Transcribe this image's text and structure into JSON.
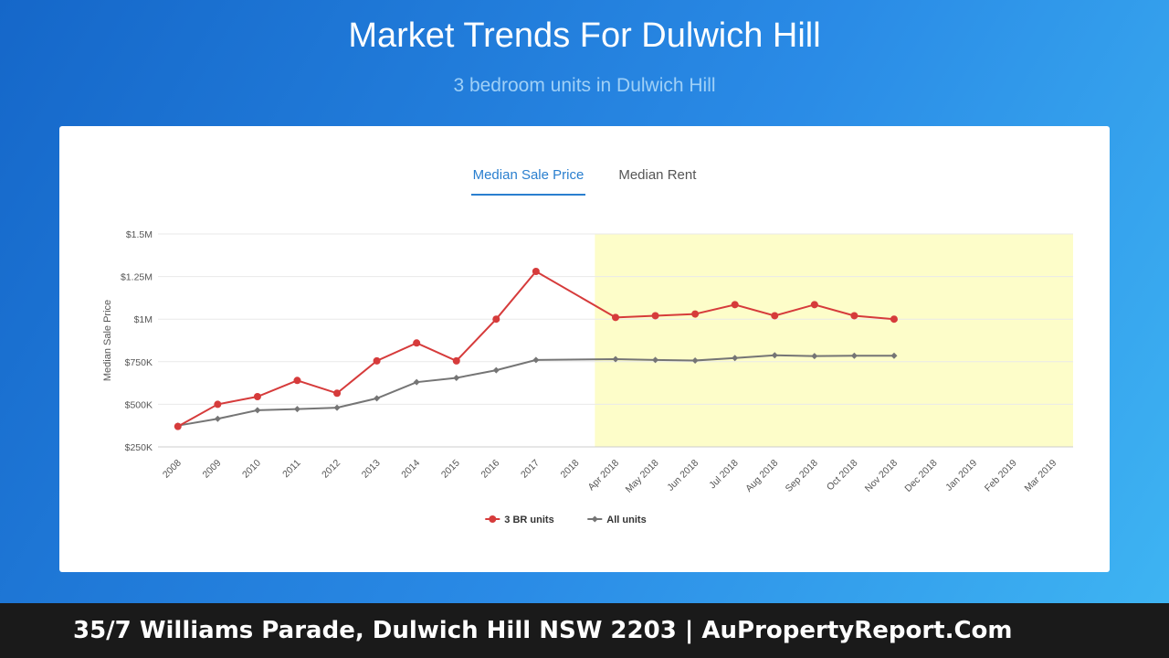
{
  "page": {
    "title": "Market Trends For Dulwich Hill",
    "subtitle": "3 bedroom units in Dulwich Hill"
  },
  "tabs": [
    {
      "label": "Median Sale Price",
      "active": true
    },
    {
      "label": "Median Rent",
      "active": false
    }
  ],
  "footer": {
    "text": "35/7 Williams Parade, Dulwich Hill NSW 2203 | AuPropertyReport.Com"
  },
  "colors": {
    "series_3br": "#d63b3b",
    "series_all": "#757575",
    "highlight_band": "#fdfdc9",
    "active_tab": "#2a7fcf"
  },
  "chart_data": {
    "type": "line",
    "ylabel": "Median Sale Price",
    "xlabel": "",
    "ylim": [
      250000,
      1500000
    ],
    "y_ticks": [
      250000,
      500000,
      750000,
      1000000,
      1250000,
      1500000
    ],
    "y_tick_labels": [
      "$250K",
      "$500K",
      "$750K",
      "$1M",
      "$1.25M",
      "$1.5M"
    ],
    "categories": [
      "2008",
      "2009",
      "2010",
      "2011",
      "2012",
      "2013",
      "2014",
      "2015",
      "2016",
      "2017",
      "2018",
      "Apr 2018",
      "May 2018",
      "Jun 2018",
      "Jul 2018",
      "Aug 2018",
      "Sep 2018",
      "Oct 2018",
      "Nov 2018",
      "Dec 2018",
      "Jan 2019",
      "Feb 2019",
      "Mar 2019"
    ],
    "highlight_range": [
      "2018",
      "Mar 2019"
    ],
    "legend_position": "bottom-center",
    "grid": true,
    "series": [
      {
        "name": "3 BR units",
        "marker": "circle",
        "values": [
          370000,
          500000,
          545000,
          640000,
          565000,
          755000,
          860000,
          755000,
          1000000,
          1280000,
          null,
          1010000,
          1020000,
          1030000,
          1085000,
          1020000,
          1085000,
          1020000,
          1000000,
          null,
          null,
          null,
          null
        ]
      },
      {
        "name": "All units",
        "marker": "diamond",
        "values": [
          375000,
          415000,
          465000,
          472000,
          480000,
          535000,
          630000,
          655000,
          700000,
          760000,
          null,
          765000,
          760000,
          757000,
          772000,
          788000,
          783000,
          785000,
          785000,
          null,
          null,
          null,
          null
        ]
      }
    ]
  }
}
